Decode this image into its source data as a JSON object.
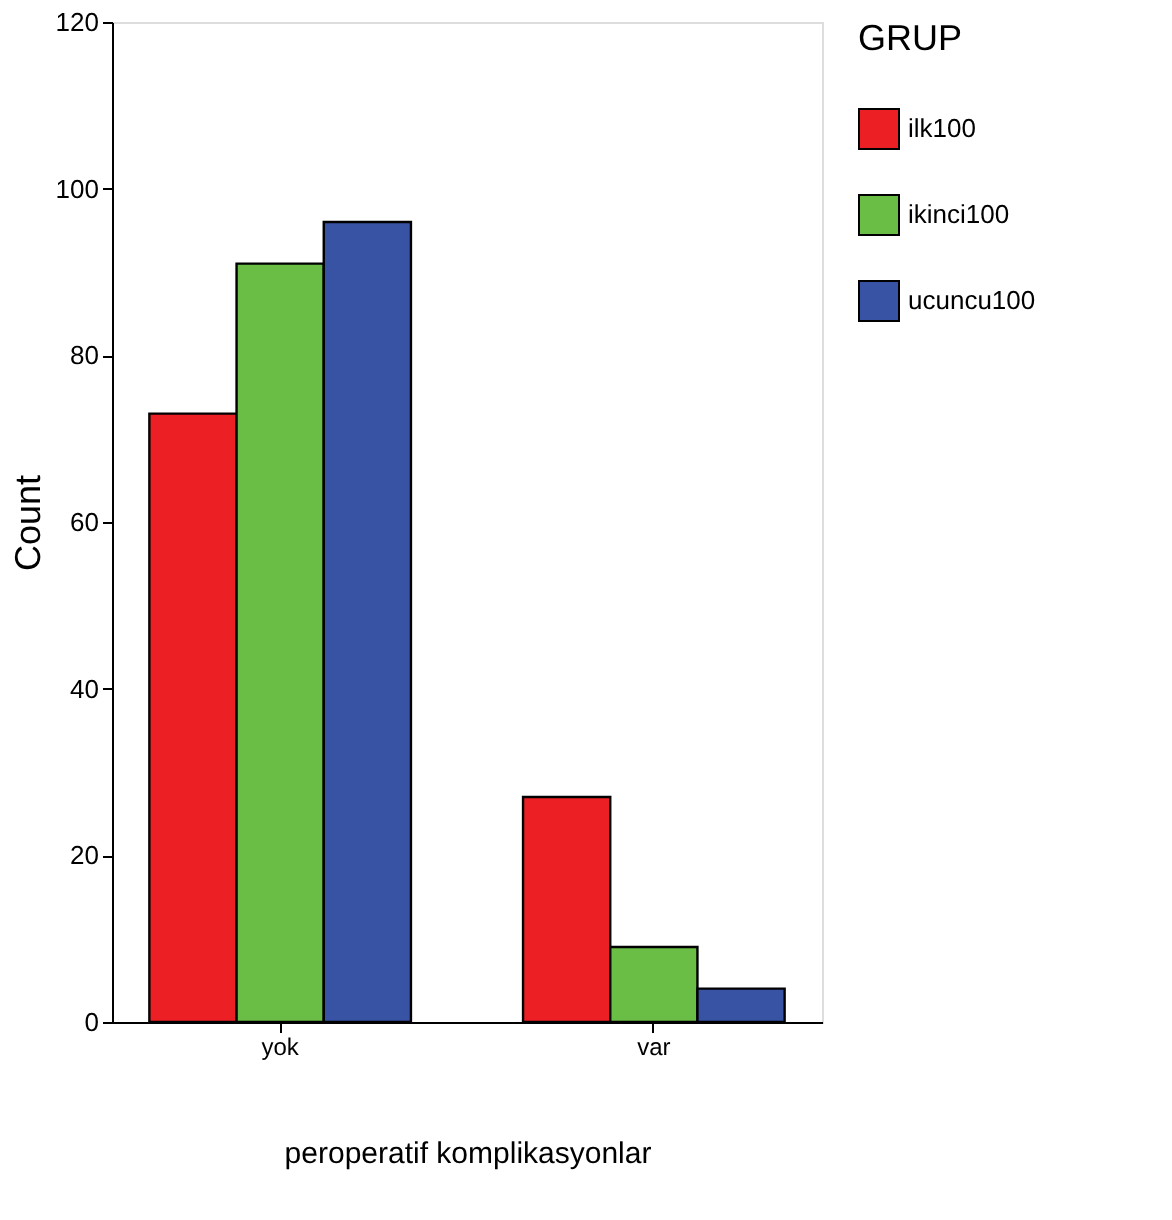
{
  "chart_data": {
    "type": "bar",
    "xlabel": "peroperatif komplikasyonlar",
    "ylabel": "Count",
    "legend_title": "GRUP",
    "categories": [
      "yok",
      "var"
    ],
    "series": [
      {
        "name": "ilk100",
        "color": "#ec1f24",
        "values": [
          73,
          27
        ]
      },
      {
        "name": "ikinci100",
        "color": "#6abd45",
        "values": [
          91,
          9
        ]
      },
      {
        "name": "ucuncu100",
        "color": "#3853a4",
        "values": [
          96,
          4
        ]
      }
    ],
    "ylim": [
      0,
      120
    ],
    "yticks": [
      0,
      20,
      40,
      60,
      80,
      100,
      120
    ],
    "grid": false,
    "legend": "right"
  }
}
